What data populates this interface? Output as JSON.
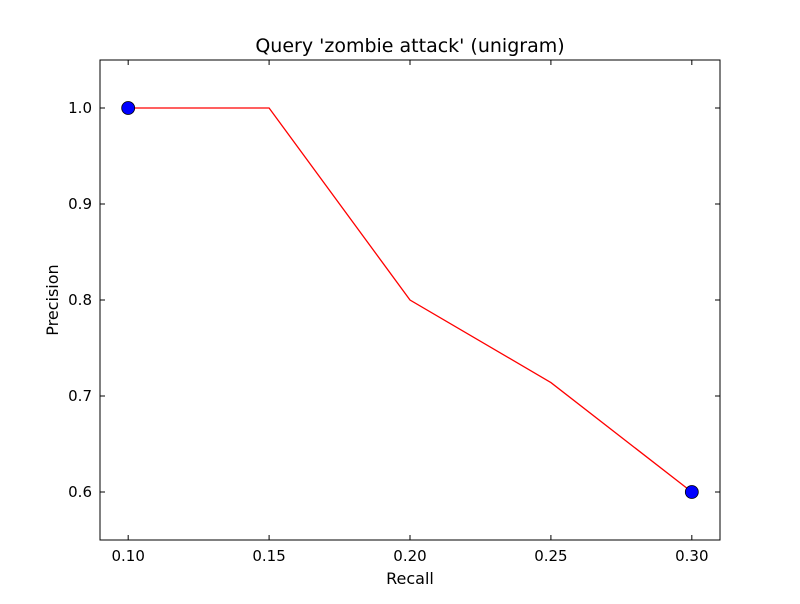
{
  "chart_data": {
    "type": "line",
    "title": "Query 'zombie attack' (unigram)",
    "xlabel": "Recall",
    "ylabel": "Precision",
    "xlim": [
      0.09,
      0.31
    ],
    "ylim": [
      0.55,
      1.05
    ],
    "grid": false,
    "x_ticks": [
      0.1,
      0.15,
      0.2,
      0.25,
      0.3
    ],
    "x_tick_labels": [
      "0.10",
      "0.15",
      "0.20",
      "0.25",
      "0.30"
    ],
    "y_ticks": [
      0.6,
      0.7,
      0.8,
      0.9,
      1.0
    ],
    "y_tick_labels": [
      "0.6",
      "0.7",
      "0.8",
      "0.9",
      "1.0"
    ],
    "series": [
      {
        "x": [
          0.1,
          0.15,
          0.2,
          0.25,
          0.3
        ],
        "y": [
          1.0,
          1.0,
          0.8,
          0.714,
          0.6
        ],
        "color": "#ff0000"
      }
    ],
    "markers": {
      "x": [
        0.1,
        0.3
      ],
      "y": [
        1.0,
        0.6
      ],
      "color": "#0000ff",
      "edge_color": "#000000"
    }
  }
}
